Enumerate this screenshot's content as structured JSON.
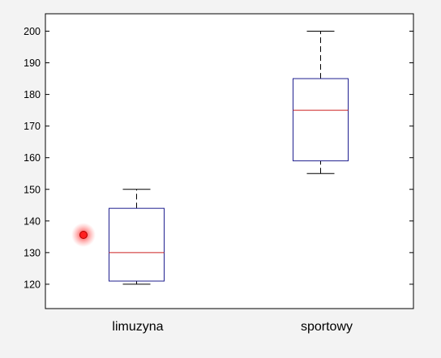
{
  "chart_data": {
    "type": "boxplot",
    "title": "",
    "xlabel": "",
    "ylabel": "",
    "categories": [
      "limuzyna",
      "sportowy"
    ],
    "boxes": [
      {
        "category": "limuzyna",
        "whisker_low": 120,
        "q1": 121,
        "median": 130,
        "q3": 144,
        "whisker_high": 150
      },
      {
        "category": "sportowy",
        "whisker_low": 155,
        "q1": 159,
        "median": 175,
        "q3": 185,
        "whisker_high": 200
      }
    ],
    "ylim": [
      112.3,
      205.5
    ],
    "yticks": [
      120,
      130,
      140,
      150,
      160,
      170,
      180,
      190,
      200
    ],
    "grid": false,
    "colors": {
      "box": "#1f1f8f",
      "median": "#cc2222",
      "whisker": "#000000",
      "background": "#f3f3f3",
      "plot_background": "#ffffff"
    }
  },
  "cursor": {
    "icon": "pointer-highlight-icon",
    "color": "#ff0000"
  }
}
